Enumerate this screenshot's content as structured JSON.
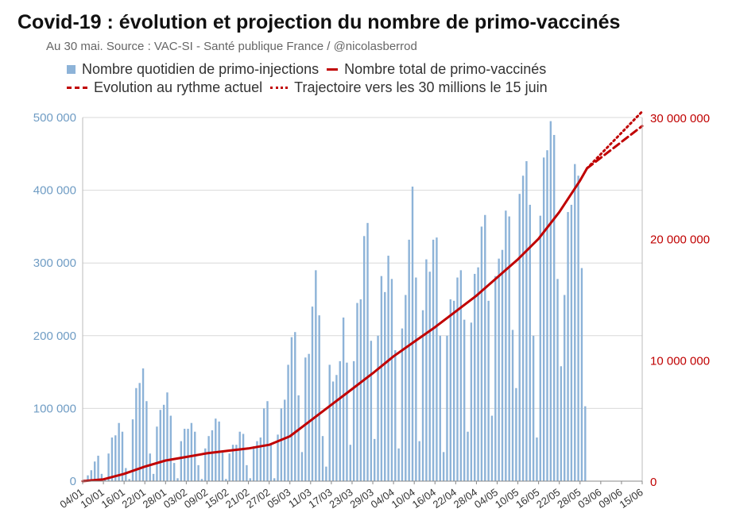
{
  "title": "Covid-19 : évolution et projection du nombre de primo-vaccinés",
  "subtitle": "Au 30 mai. Source : VAC-SI - Santé publique France / @nicolasberrod",
  "legend": [
    {
      "label": "Nombre quotidien de primo-injections",
      "style": "bar",
      "color": "#8db3d8"
    },
    {
      "label": "Nombre total de primo-vaccinés",
      "style": "line",
      "color": "#c00000"
    },
    {
      "label": "Evolution au rythme actuel",
      "style": "dashed",
      "color": "#c00000"
    },
    {
      "label": "Trajectoire vers les 30 millions le 15 juin",
      "style": "dotted",
      "color": "#c00000"
    }
  ],
  "chart_data": {
    "type": "bar",
    "x_tick_labels": [
      "04/01",
      "10/01",
      "16/01",
      "22/01",
      "28/01",
      "03/02",
      "09/02",
      "15/02",
      "21/02",
      "27/02",
      "05/03",
      "11/03",
      "17/03",
      "23/03",
      "29/03",
      "04/04",
      "10/04",
      "16/04",
      "22/04",
      "28/04",
      "04/05",
      "10/05",
      "16/05",
      "22/05",
      "28/05",
      "03/06",
      "09/06",
      "15/06"
    ],
    "y_left_ticks": [
      "0",
      "100 000",
      "200 000",
      "300 000",
      "400 000",
      "500 000"
    ],
    "y_right_ticks": [
      "0",
      "10 000 000",
      "20 000 000",
      "30 000 000"
    ],
    "y_left_range": [
      0,
      500000
    ],
    "y_right_range": [
      0,
      30000000
    ],
    "grid": true,
    "colors": {
      "bars": "#8db3d8",
      "line": "#c00000",
      "left_axis_text": "#6f9cc4",
      "right_axis_text": "#c00000"
    },
    "series": [
      {
        "name": "Nombre quotidien de primo-injections",
        "axis": "left",
        "x_start": "2021-01-04",
        "values": [
          2000,
          8000,
          15000,
          27000,
          35000,
          10000,
          2000,
          38000,
          60000,
          63000,
          80000,
          68000,
          18000,
          3000,
          85000,
          128000,
          135000,
          155000,
          110000,
          38000,
          10000,
          75000,
          98000,
          105000,
          122000,
          90000,
          25000,
          4000,
          55000,
          72000,
          72000,
          80000,
          68000,
          22000,
          3000,
          45000,
          62000,
          70000,
          86000,
          82000,
          42000,
          3000,
          38000,
          50000,
          50000,
          68000,
          65000,
          22000,
          4000,
          48000,
          55000,
          60000,
          100000,
          110000,
          50000,
          4000,
          64000,
          100000,
          112000,
          160000,
          198000,
          205000,
          118000,
          40000,
          170000,
          175000,
          240000,
          290000,
          228000,
          62000,
          20000,
          160000,
          137000,
          146000,
          165000,
          225000,
          163000,
          50000,
          165000,
          245000,
          250000,
          337000,
          355000,
          193000,
          58000,
          200000,
          282000,
          260000,
          310000,
          278000,
          180000,
          45000,
          210000,
          256000,
          332000,
          405000,
          280000,
          55000,
          235000,
          305000,
          288000,
          332000,
          335000,
          200000,
          40000,
          200000,
          250000,
          248000,
          280000,
          290000,
          222000,
          68000,
          218000,
          285000,
          294000,
          350000,
          366000,
          248000,
          90000,
          282000,
          306000,
          318000,
          372000,
          364000,
          208000,
          128000,
          395000,
          420000,
          440000,
          380000,
          200000,
          60000,
          365000,
          445000,
          455000,
          495000,
          476000,
          278000,
          158000,
          256000,
          370000,
          380000,
          436000,
          420000,
          293000,
          103000
        ]
      },
      {
        "name": "Nombre total de primo-vaccinés",
        "axis": "right",
        "points": [
          [
            "04/01",
            0
          ],
          [
            "10/01",
            150000
          ],
          [
            "16/01",
            600000
          ],
          [
            "22/01",
            1200000
          ],
          [
            "28/01",
            1700000
          ],
          [
            "03/02",
            2000000
          ],
          [
            "09/02",
            2300000
          ],
          [
            "15/02",
            2500000
          ],
          [
            "21/02",
            2700000
          ],
          [
            "27/02",
            3000000
          ],
          [
            "05/03",
            3700000
          ],
          [
            "11/03",
            5000000
          ],
          [
            "17/03",
            6300000
          ],
          [
            "23/03",
            7600000
          ],
          [
            "29/03",
            8900000
          ],
          [
            "04/04",
            10300000
          ],
          [
            "10/04",
            11500000
          ],
          [
            "16/04",
            12700000
          ],
          [
            "22/04",
            14000000
          ],
          [
            "28/04",
            15300000
          ],
          [
            "04/05",
            16800000
          ],
          [
            "10/05",
            18300000
          ],
          [
            "16/05",
            20000000
          ],
          [
            "22/05",
            22200000
          ],
          [
            "28/05",
            24800000
          ],
          [
            "30/05",
            25800000
          ]
        ]
      },
      {
        "name": "Evolution au rythme actuel",
        "axis": "right",
        "style": "dashed",
        "points": [
          [
            "30/05",
            25800000
          ],
          [
            "15/06",
            29300000
          ]
        ]
      },
      {
        "name": "Trajectoire vers les 30 millions le 15 juin",
        "axis": "right",
        "style": "dotted",
        "points": [
          [
            "30/05",
            25800000
          ],
          [
            "15/06",
            30500000
          ]
        ]
      }
    ]
  }
}
